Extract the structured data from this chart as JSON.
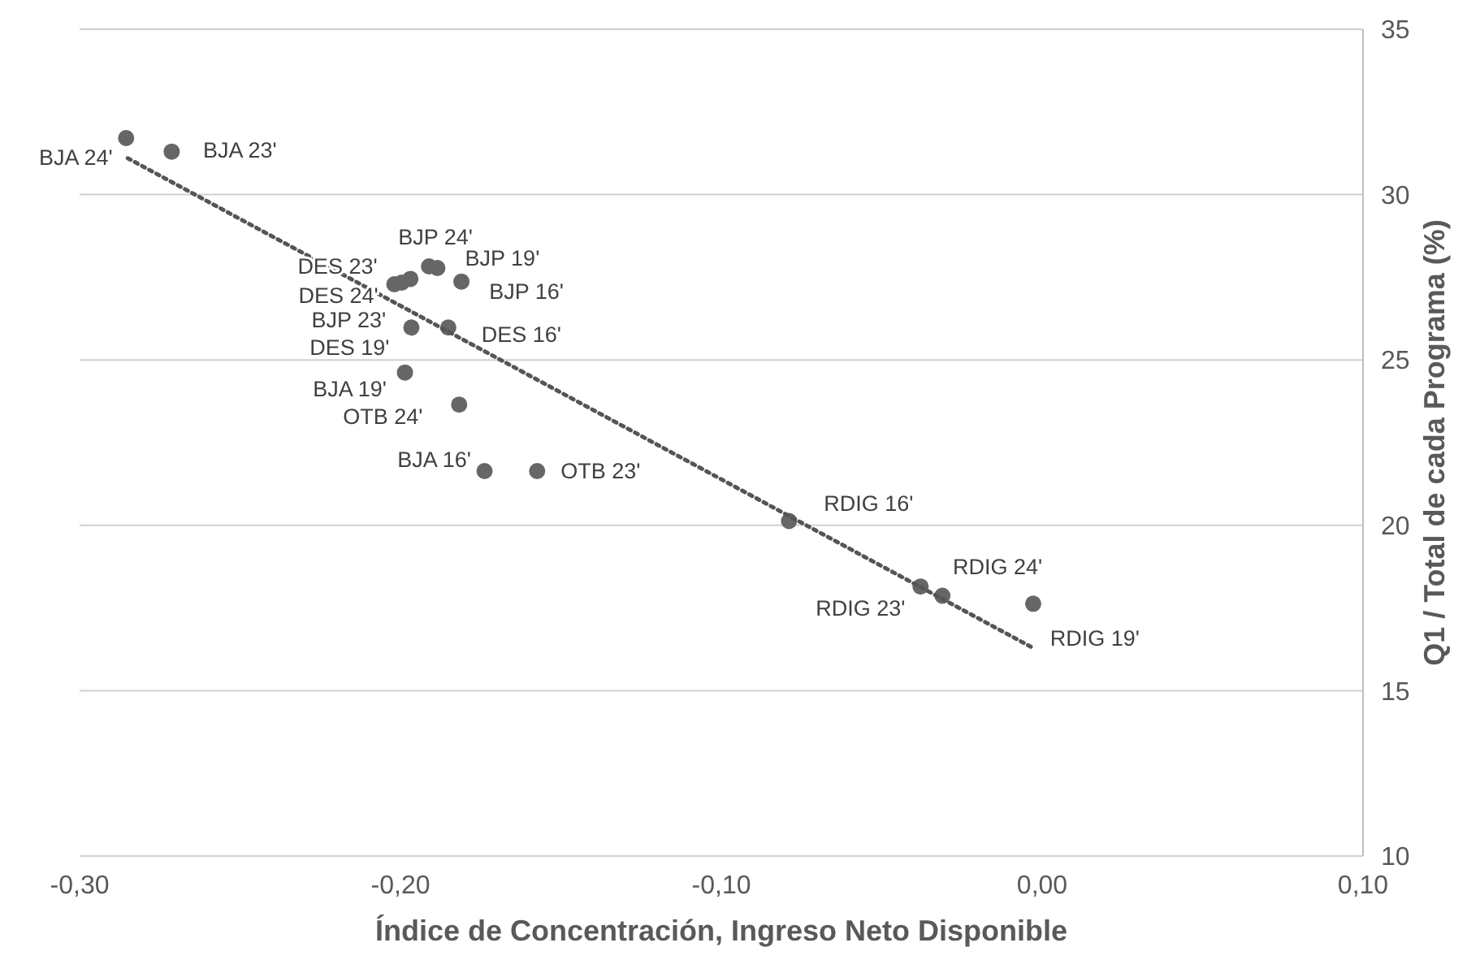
{
  "chart_data": {
    "type": "scatter",
    "xlabel": "Índice de Concentración, Ingreso Neto Disponible",
    "ylabel": "Q1 / Total de cada Programa (%)",
    "xlim": [
      -0.3,
      0.1
    ],
    "xticks": [
      {
        "value": -0.3,
        "label": "-0,30"
      },
      {
        "value": -0.2,
        "label": "-0,20"
      },
      {
        "value": -0.1,
        "label": "-0,10"
      },
      {
        "value": 0,
        "label": "0,00"
      },
      {
        "value": 0.1,
        "label": "0,10"
      }
    ],
    "ylim": [
      10,
      35
    ],
    "yticks": [
      10,
      15,
      20,
      25,
      30,
      35
    ],
    "grid": "y",
    "marker": "circle",
    "series": [
      {
        "color": "#666666",
        "value_labels": [
          "BJA 24'",
          "BJA 23'",
          "DES 23'",
          "DES 24'",
          "BJP 23'",
          "BJP 24'",
          "BJP 19'",
          "BJP 16'",
          "DES 19'",
          "DES 16'",
          "BJA 19'",
          "OTB 24'",
          "BJA 16'",
          "OTB 23'",
          "RDIG 16'",
          "RDIG 23'",
          "RDIG 24'",
          "RDIG 19'"
        ],
        "x": [
          -0.2855,
          -0.2713,
          -0.2019,
          -0.1996,
          -0.1969,
          -0.1911,
          -0.1885,
          -0.181,
          -0.1966,
          -0.1851,
          -0.1986,
          -0.1817,
          -0.1738,
          -0.1574,
          -0.0789,
          -0.0379,
          -0.0311,
          -0.0028
        ],
        "values": [
          31.71,
          31.3,
          27.29,
          27.34,
          27.45,
          27.83,
          27.78,
          27.37,
          25.98,
          25.98,
          24.62,
          23.65,
          21.64,
          21.64,
          20.13,
          18.15,
          17.87,
          17.63
        ]
      },
      {
        "type": "line",
        "color": "#555555",
        "line_style": "dotted",
        "marker": "none",
        "x": [
          -0.285,
          -0.003
        ],
        "values": [
          31.1,
          16.3
        ]
      }
    ]
  }
}
